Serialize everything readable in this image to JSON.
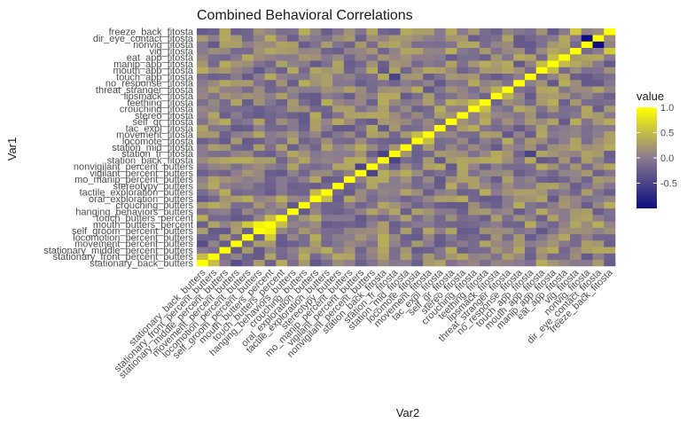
{
  "chart_data": {
    "type": "heatmap",
    "title": "Combined Behavioral Correlations",
    "xlabel": "Var2",
    "ylabel": "Var1",
    "variables": [
      "stationary_back_butters",
      "stationary_front_percent_butters",
      "stationary_middle_percent_butters",
      "movement_percent_butters",
      "locomotion_percent_butters",
      "self_groom_percent_butters",
      "mouth_butters_percent",
      "touch_butters_percent",
      "hanging_behaviors_butters",
      "crouching_butters",
      "oral_exploration_butters",
      "tactile_exploration_butters",
      "stereotypy_butters",
      "mo_manip_percent_butters",
      "vigilant_percent_butters",
      "nonvigilant_percent_butters",
      "station_back_fitosta",
      "station_fr_fitosta",
      "station_mid_fitosta",
      "locomote_fitosta",
      "movement_fitosta",
      "tac_expl_fitosta",
      "self_gr_fitosta",
      "stereo_fitosta",
      "crouching_fitosta",
      "teething_fitosta",
      "lipsmack_fitosta",
      "threat_stranger_fitosta",
      "no_response_fitosta",
      "touch_app_fitosta",
      "mouth_app_fitosta",
      "manip_app_fitosta",
      "eat_app_fitosta",
      "vig_fitosta",
      "nonvig_fitosta",
      "dir_eye_contact_fitosta",
      "freeze_back_fitosta"
    ],
    "diagonal_value": 1,
    "strong_correlations": [
      {
        "var1": "stationary_front_percent_butters",
        "var2": "stationary_back_butters",
        "value": 0.5
      },
      {
        "var1": "movement_percent_butters",
        "var2": "stationary_back_butters",
        "value": -0.4
      },
      {
        "var1": "mouth_butters_percent",
        "var2": "self_groom_percent_butters",
        "value": 0.9
      },
      {
        "var1": "mouth_butters_percent",
        "var2": "locomotion_percent_butters",
        "value": 0.6
      },
      {
        "var1": "touch_butters_percent",
        "var2": "mouth_butters_percent",
        "value": 0.5
      },
      {
        "var1": "tactile_exploration_butters",
        "var2": "oral_exploration_butters",
        "value": 0.5
      },
      {
        "var1": "nonvigilant_percent_butters",
        "var2": "vigilant_percent_butters",
        "value": -0.5
      },
      {
        "var1": "station_fr_fitosta",
        "var2": "station_back_fitosta",
        "value": -0.5
      },
      {
        "var1": "locomote_fitosta",
        "var2": "movement_fitosta",
        "value": 0.5
      },
      {
        "var1": "teething_fitosta",
        "var2": "crouching_fitosta",
        "value": 0.5
      },
      {
        "var1": "threat_stranger_fitosta",
        "var2": "lipsmack_fitosta",
        "value": 0.4
      },
      {
        "var1": "touch_app_fitosta",
        "var2": "station_fr_fitosta",
        "value": -0.5
      },
      {
        "var1": "manip_app_fitosta",
        "var2": "mouth_app_fitosta",
        "value": 0.5
      },
      {
        "var1": "eat_app_fitosta",
        "var2": "manip_app_fitosta",
        "value": 0.5
      },
      {
        "var1": "dir_eye_contact_fitosta",
        "var2": "nonvig_fitosta",
        "value": -1
      },
      {
        "var1": "freeze_back_fitosta",
        "var2": "vig_fitosta",
        "value": 0.6
      }
    ],
    "color_scale": {
      "low": "#0d0d80",
      "mid": "#8a7a90",
      "high": "#ffff00",
      "min": -1,
      "max": 1
    },
    "legend": {
      "title": "value",
      "ticks": [
        "1.0",
        "0.5",
        "0.0",
        "-0.5"
      ],
      "tick_values": [
        1,
        0.5,
        0,
        -0.5
      ],
      "placement": "right"
    }
  }
}
